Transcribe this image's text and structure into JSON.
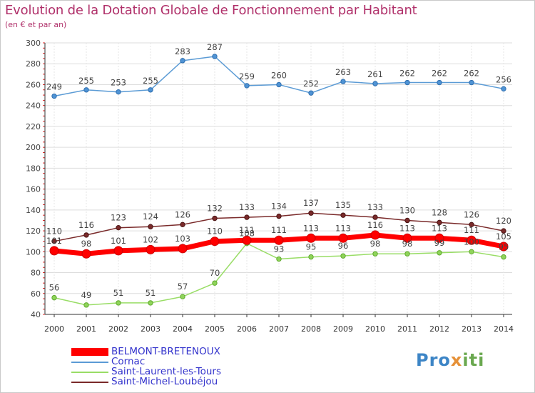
{
  "title": "Evolution de la Dotation Globale de Fonctionnement par Habitant",
  "subtitle": "(en € et par an)",
  "logo": {
    "part1": "Pro",
    "part2": "x",
    "part3": "iti"
  },
  "colors": {
    "BELMONT-BRETENOUX": "#ff0000",
    "Cornac": "#5b9bd5",
    "Saint-Laurent-les-Tours": "#99dd66",
    "Saint-Michel-Loubéjou": "#7a2a2a",
    "title": "#b0306a",
    "legend_text": "#3333cc"
  },
  "chart_data": {
    "type": "line",
    "x": [
      "2000",
      "2001",
      "2002",
      "2003",
      "2004",
      "2005",
      "2006",
      "2007",
      "2008",
      "2009",
      "2010",
      "2011",
      "2012",
      "2013",
      "2014"
    ],
    "ylim": [
      40,
      300
    ],
    "yticks": [
      40,
      60,
      80,
      100,
      120,
      140,
      160,
      180,
      200,
      220,
      240,
      260,
      280,
      300
    ],
    "grid": "horizontal",
    "legend_position": "bottom-left",
    "series": [
      {
        "name": "BELMONT-BRETENOUX",
        "values": [
          101,
          98,
          101,
          102,
          103,
          110,
          111,
          111,
          113,
          113,
          116,
          113,
          113,
          111,
          105
        ]
      },
      {
        "name": "Cornac",
        "values": [
          249,
          255,
          253,
          255,
          283,
          287,
          259,
          260,
          252,
          263,
          261,
          262,
          262,
          262,
          256
        ]
      },
      {
        "name": "Saint-Laurent-les-Tours",
        "values": [
          56,
          49,
          51,
          51,
          57,
          70,
          108,
          93,
          95,
          96,
          98,
          98,
          99,
          100,
          95
        ]
      },
      {
        "name": "Saint-Michel-Loubéjou",
        "values": [
          110,
          116,
          123,
          124,
          126,
          132,
          133,
          134,
          137,
          135,
          133,
          130,
          128,
          126,
          120
        ]
      }
    ]
  }
}
